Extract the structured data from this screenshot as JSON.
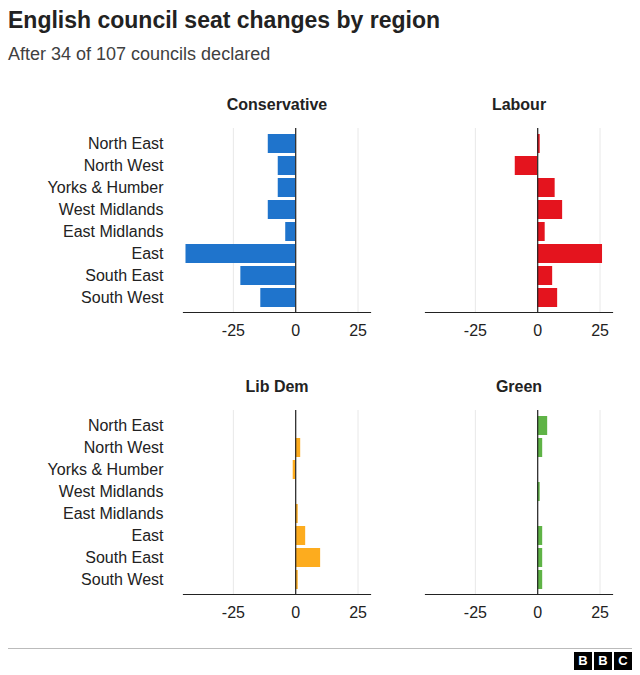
{
  "title": "English council seat changes by region",
  "subtitle": "After 34 of 107 councils declared",
  "footer": "BBC",
  "chart_data": [
    {
      "type": "bar",
      "title": "Conservative",
      "orientation": "horizontal",
      "categories": [
        "North East",
        "North West",
        "Yorks & Humber",
        "West Midlands",
        "East Midlands",
        "East",
        "South East",
        "South West"
      ],
      "values": [
        -11,
        -7,
        -7,
        -11,
        -4,
        -44,
        -22,
        -14
      ],
      "color": "#1f74cc",
      "xlim": [
        -45,
        30
      ],
      "xticks": [
        -25,
        0,
        25
      ],
      "grid": true
    },
    {
      "type": "bar",
      "title": "Labour",
      "orientation": "horizontal",
      "categories": [
        "North East",
        "North West",
        "Yorks & Humber",
        "West Midlands",
        "East Midlands",
        "East",
        "South East",
        "South West"
      ],
      "values": [
        1,
        -9,
        7,
        10,
        3,
        26,
        6,
        8
      ],
      "color": "#e4141e",
      "xlim": [
        -45,
        30
      ],
      "xticks": [
        -25,
        0,
        25
      ],
      "grid": true,
      "tick_labels": "x"
    },
    {
      "type": "bar",
      "title": "Lib Dem",
      "orientation": "horizontal",
      "categories": [
        "North East",
        "North West",
        "Yorks & Humber",
        "West Midlands",
        "East Midlands",
        "East",
        "South East",
        "South West"
      ],
      "values": [
        0,
        2,
        -1,
        0,
        1,
        4,
        10,
        1
      ],
      "color": "#fdac1e",
      "xlim": [
        -45,
        30
      ],
      "xticks": [
        -25,
        0,
        25
      ],
      "grid": true
    },
    {
      "type": "bar",
      "title": "Green",
      "orientation": "horizontal",
      "categories": [
        "North East",
        "North West",
        "Yorks & Humber",
        "West Midlands",
        "East Midlands",
        "East",
        "South East",
        "South West"
      ],
      "values": [
        4,
        2,
        0,
        1,
        0,
        2,
        2,
        2
      ],
      "color": "#5fb346",
      "xlim": [
        -45,
        30
      ],
      "xticks": [
        -25,
        0,
        25
      ],
      "grid": true,
      "tick_labels": "x"
    }
  ]
}
